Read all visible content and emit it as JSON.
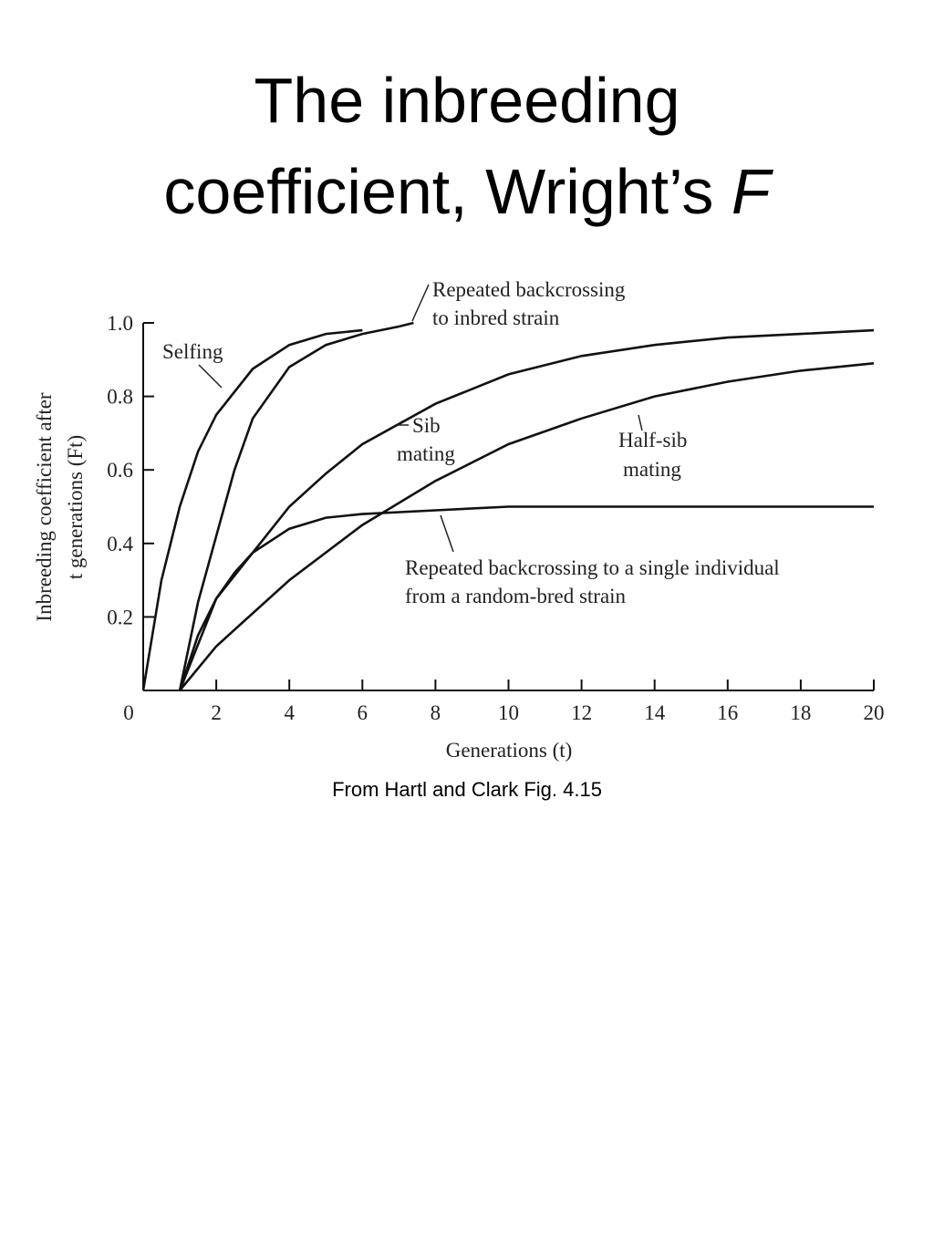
{
  "title": [
    "The inbreeding",
    "coefficient, Wright’s",
    "F"
  ],
  "chart_data": {
    "type": "line",
    "x_label": "Generations (t)",
    "y_label": [
      "Inbreeding coefficient after",
      "t generations (Ft)"
    ],
    "xlim": [
      0,
      20
    ],
    "xticks": [
      0,
      2,
      4,
      6,
      8,
      10,
      12,
      14,
      16,
      18,
      20
    ],
    "ylim": [
      0,
      1
    ],
    "yticks": [
      0.2,
      0.4,
      0.6,
      0.8,
      {
        "value": 1,
        "label": "1.0"
      }
    ],
    "series": [
      {
        "label": [
          "Selfing"
        ],
        "color": "#111",
        "x": [
          0,
          0.5,
          1,
          1.5,
          2,
          3,
          4,
          5,
          6
        ],
        "values": [
          0,
          0.3,
          0.5,
          0.65,
          0.75,
          0.875,
          0.94,
          0.97,
          0.98
        ]
      },
      {
        "label": [
          "Repeated backcrossing",
          "to inbred strain"
        ],
        "color": "#111",
        "x": [
          1,
          1.5,
          2,
          2.5,
          3,
          4,
          5,
          6,
          7,
          7.4
        ],
        "values": [
          0,
          0.24,
          0.42,
          0.6,
          0.74,
          0.88,
          0.94,
          0.97,
          0.99,
          1.0
        ]
      },
      {
        "label": [
          "Sib",
          "mating"
        ],
        "color": "#111",
        "x": [
          1,
          2,
          3,
          4,
          5,
          6,
          8,
          10,
          12,
          14,
          16,
          18,
          20
        ],
        "values": [
          0,
          0.25,
          0.375,
          0.5,
          0.59,
          0.67,
          0.78,
          0.86,
          0.91,
          0.94,
          0.96,
          0.97,
          0.98
        ]
      },
      {
        "label": [
          "Half-sib",
          "mating"
        ],
        "color": "#111",
        "x": [
          1,
          2,
          4,
          6,
          8,
          10,
          12,
          14,
          16,
          18,
          20
        ],
        "values": [
          0,
          0.12,
          0.3,
          0.45,
          0.57,
          0.67,
          0.74,
          0.8,
          0.84,
          0.87,
          0.89
        ]
      },
      {
        "label": [
          "Repeated backcrossing to a single individual",
          "from a random-bred strain"
        ],
        "color": "#111",
        "x": [
          1,
          1.5,
          2,
          2.5,
          3,
          4,
          5,
          6,
          8,
          10,
          20
        ],
        "values": [
          0,
          0.15,
          0.25,
          0.32,
          0.375,
          0.44,
          0.47,
          0.48,
          0.49,
          0.5,
          0.5
        ]
      }
    ]
  },
  "caption": "From Hartl and Clark Fig. 4.15"
}
